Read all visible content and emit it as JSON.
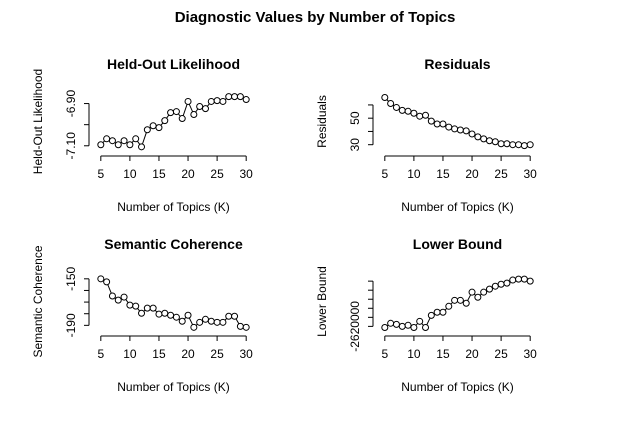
{
  "title": "Diagnostic Values by Number of Topics",
  "chart_data": [
    {
      "type": "line",
      "title": "Held-Out Likelihood",
      "x_label": "Number of Topics (K)",
      "y_label": "Held-Out Likelihood",
      "x": [
        5,
        6,
        7,
        8,
        9,
        10,
        11,
        12,
        13,
        14,
        15,
        16,
        17,
        18,
        19,
        20,
        21,
        22,
        23,
        24,
        25,
        26,
        27,
        28,
        29,
        30
      ],
      "values": [
        -7.095,
        -7.067,
        -7.076,
        -7.095,
        -7.076,
        -7.095,
        -7.067,
        -7.105,
        -7.024,
        -7.005,
        -7.014,
        -6.981,
        -6.943,
        -6.938,
        -6.971,
        -6.89,
        -6.952,
        -6.914,
        -6.924,
        -6.89,
        -6.886,
        -6.89,
        -6.867,
        -6.867,
        -6.867,
        -6.881
      ],
      "xlim": [
        4,
        31
      ],
      "ylim": [
        -7.12,
        -6.85
      ],
      "xticks": [
        5,
        10,
        15,
        20,
        25,
        30
      ],
      "yticks": [
        {
          "value": -7.1,
          "label": "-7.10"
        },
        {
          "value": -7.0,
          "label": null
        },
        {
          "value": -6.9,
          "label": "-6.90"
        }
      ]
    },
    {
      "type": "line",
      "title": "Residuals",
      "x_label": "Number of Topics (K)",
      "y_label": "Residuals",
      "x": [
        5,
        6,
        7,
        8,
        9,
        10,
        11,
        12,
        13,
        14,
        15,
        16,
        17,
        18,
        19,
        20,
        21,
        22,
        23,
        24,
        25,
        26,
        27,
        28,
        29,
        30
      ],
      "values": [
        65.6,
        61.1,
        58.1,
        55.9,
        55.2,
        53.7,
        51.5,
        52.2,
        47.8,
        45.6,
        45.6,
        43.3,
        41.9,
        41.1,
        40.4,
        38.1,
        35.9,
        34.4,
        33.0,
        32.2,
        30.7,
        30.7,
        30.0,
        30.0,
        29.3,
        30.0
      ],
      "xlim": [
        4,
        31
      ],
      "ylim": [
        26,
        69
      ],
      "xticks": [
        5,
        10,
        15,
        20,
        25,
        30
      ],
      "yticks": [
        30,
        {
          "value": 40,
          "label": null
        },
        50,
        {
          "value": 60,
          "label": null
        }
      ]
    },
    {
      "type": "line",
      "title": "Semantic Coherence",
      "x_label": "Number of Topics (K)",
      "y_label": "Semantic Coherence",
      "x": [
        5,
        6,
        7,
        8,
        9,
        10,
        11,
        12,
        13,
        14,
        15,
        16,
        17,
        18,
        19,
        20,
        21,
        22,
        23,
        24,
        25,
        26,
        27,
        28,
        29,
        30
      ],
      "values": [
        -150,
        -152.6,
        -164.8,
        -168.3,
        -165.7,
        -172.6,
        -173.5,
        -179.6,
        -175.2,
        -175.2,
        -180.4,
        -179.6,
        -181.3,
        -183,
        -186.5,
        -181.3,
        -191.7,
        -187.4,
        -184.8,
        -186.5,
        -187.4,
        -187.4,
        -182.2,
        -182.2,
        -190.9,
        -191.7
      ],
      "xlim": [
        4,
        31
      ],
      "ylim": [
        -194,
        -145
      ],
      "xticks": [
        5,
        10,
        15,
        20,
        25,
        30
      ],
      "yticks": [
        -190,
        {
          "value": -180,
          "label": null
        },
        {
          "value": -170,
          "label": null
        },
        {
          "value": -160,
          "label": null
        },
        -150
      ]
    },
    {
      "type": "line",
      "title": "Lower Bound",
      "x_label": "Number of Topics (K)",
      "y_label": "Lower Bound",
      "x": [
        5,
        6,
        7,
        8,
        9,
        10,
        11,
        12,
        13,
        14,
        15,
        16,
        17,
        18,
        19,
        20,
        21,
        22,
        23,
        24,
        25,
        26,
        27,
        28,
        29,
        30
      ],
      "values": [
        -2620600,
        -2618300,
        -2618900,
        -2620000,
        -2619400,
        -2620600,
        -2617200,
        -2620600,
        -2613900,
        -2612200,
        -2612200,
        -2608900,
        -2605600,
        -2605600,
        -2607200,
        -2601100,
        -2603900,
        -2601100,
        -2599400,
        -2597800,
        -2596700,
        -2596100,
        -2594400,
        -2593900,
        -2593900,
        -2595000
      ],
      "xlim": [
        4,
        31
      ],
      "ylim": [
        -2622000,
        -2590500
      ],
      "xticks": [
        5,
        10,
        15,
        20,
        25,
        30
      ],
      "yticks": [
        -2620000,
        {
          "value": -2615000,
          "label": null
        },
        {
          "value": -2610000,
          "label": null
        },
        {
          "value": -2605000,
          "label": null
        },
        {
          "value": -2600000,
          "label": null
        },
        {
          "value": -2595000,
          "label": null
        }
      ]
    }
  ]
}
